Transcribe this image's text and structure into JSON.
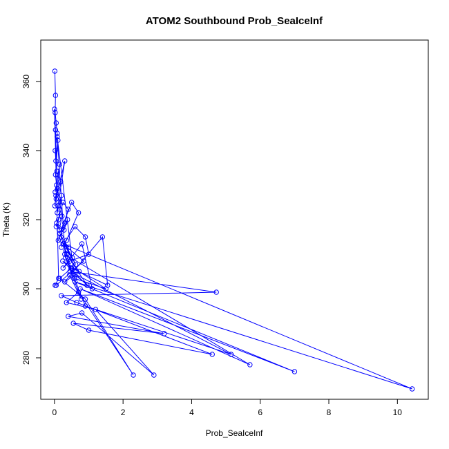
{
  "chart_data": {
    "type": "line",
    "title": "ATOM2 Southbound Prob_SeaIceInf",
    "xlabel": "Prob_SeaIceInf",
    "ylabel": "Theta (K)",
    "xlim": [
      -0.4,
      10.9
    ],
    "ylim": [
      268,
      372
    ],
    "x_ticks": [
      0,
      2,
      4,
      6,
      8,
      10
    ],
    "y_ticks": [
      280,
      300,
      320,
      340,
      360
    ],
    "grid": false,
    "legend": "none",
    "marker": "open-circle",
    "color": "#0000ff",
    "series": [
      {
        "x": [
          0.01,
          0.03,
          0.02,
          0.05,
          0.08,
          0.02,
          0.04,
          0.1,
          0.03,
          0.06,
          0.02,
          0.15,
          0.05,
          0.3,
          0.1,
          0.08,
          0.2,
          0.12,
          0.05,
          0.25,
          0.4,
          0.3,
          0.15,
          0.5,
          0.7,
          0.35,
          0.2,
          0.6,
          0.9,
          1.0,
          0.45,
          0.25,
          0.8,
          1.1,
          0.6,
          0.3,
          1.4,
          1.55,
          0.5,
          0.15,
          0.9,
          2.3,
          0.7,
          0.35,
          1.2,
          2.9,
          0.8,
          0.4,
          3.2,
          0.55,
          1.0,
          4.6,
          0.65,
          0.2,
          4.72,
          0.45,
          5.15,
          0.9,
          0.3,
          5.7,
          0.75,
          7.0,
          0.6,
          10.43,
          0.25,
          0.85,
          0.05,
          0.02,
          0.12,
          0.0,
          0.03,
          0.07,
          0.18,
          0.04,
          0.01,
          0.09,
          0.22,
          0.14,
          0.06,
          0.28,
          0.38,
          0.11,
          0.42,
          0.19,
          0.33,
          0.52,
          0.27,
          0.62,
          0.16,
          0.48,
          0.72,
          0.36,
          0.95,
          0.24,
          1.5,
          0.58,
          0.08,
          0.32,
          0.78,
          0.44
        ],
        "y": [
          363,
          356,
          351,
          348,
          345,
          340,
          337,
          343,
          333,
          330,
          328,
          336,
          326,
          337,
          324,
          322,
          327,
          320,
          318,
          325,
          323,
          319,
          316,
          325,
          322,
          314,
          312,
          318,
          315,
          310,
          308,
          306,
          313,
          300,
          304,
          302,
          315,
          301,
          306,
          303,
          297,
          275,
          299,
          296,
          294,
          275,
          293,
          292,
          287,
          290,
          288,
          281,
          296,
          298,
          299,
          305,
          281,
          295,
          310,
          278,
          300,
          276,
          302,
          271,
          313,
          308,
          301,
          301,
          303,
          352,
          346,
          334,
          331,
          327,
          324,
          329,
          321,
          317,
          319,
          317,
          320,
          314,
          312,
          315,
          311,
          309,
          313,
          307,
          316,
          306,
          305,
          310,
          301,
          308,
          300,
          303,
          344,
          309,
          297,
          304
        ]
      }
    ]
  }
}
